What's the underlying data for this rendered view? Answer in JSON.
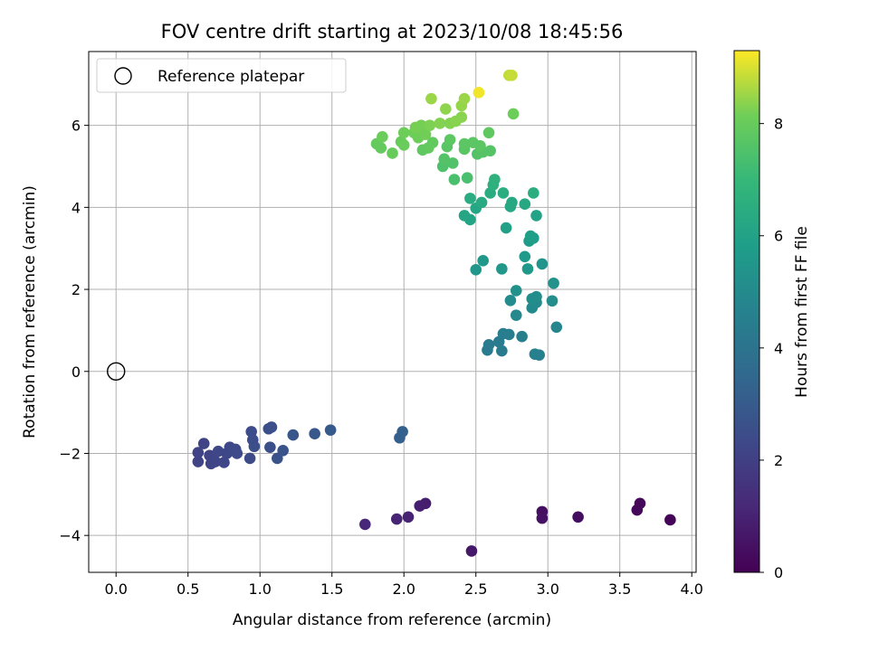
{
  "chart_data": {
    "type": "scatter",
    "title": "FOV centre drift starting at 2023/10/08 18:45:56",
    "xlabel": "Angular distance from reference (arcmin)",
    "ylabel": "Rotation from reference (arcmin)",
    "xlim": [
      -0.19,
      4.03
    ],
    "ylim": [
      -4.9,
      7.8
    ],
    "xticks": [
      0.0,
      0.5,
      1.0,
      1.5,
      2.0,
      2.5,
      3.0,
      3.5,
      4.0
    ],
    "xtick_labels": [
      "0.0",
      "0.5",
      "1.0",
      "1.5",
      "2.0",
      "2.5",
      "3.0",
      "3.5",
      "4.0"
    ],
    "yticks": [
      -4,
      -2,
      0,
      2,
      4,
      6
    ],
    "ytick_labels": [
      "−4",
      "−2",
      "0",
      "2",
      "4",
      "6"
    ],
    "grid": true,
    "legend": {
      "position": "upper-left",
      "entries": [
        {
          "label": "Reference platepar",
          "marker": "open-circle"
        }
      ]
    },
    "reference_point": {
      "x": 0.0,
      "y": 0.0
    },
    "colorbar": {
      "label": "Hours from first FF file",
      "colormap": "viridis",
      "range": [
        0,
        9.3
      ],
      "ticks": [
        0,
        2,
        4,
        6,
        8
      ],
      "tick_labels": [
        "0",
        "2",
        "4",
        "6",
        "8"
      ]
    },
    "points": [
      {
        "x": 3.85,
        "y": -3.62,
        "h": 0.1
      },
      {
        "x": 3.64,
        "y": -3.22,
        "h": 0.2
      },
      {
        "x": 3.62,
        "y": -3.38,
        "h": 0.25
      },
      {
        "x": 3.21,
        "y": -3.55,
        "h": 0.35
      },
      {
        "x": 2.96,
        "y": -3.42,
        "h": 0.45
      },
      {
        "x": 2.96,
        "y": -3.58,
        "h": 0.5
      },
      {
        "x": 2.47,
        "y": -4.38,
        "h": 0.7
      },
      {
        "x": 2.15,
        "y": -3.22,
        "h": 0.85
      },
      {
        "x": 2.11,
        "y": -3.28,
        "h": 0.9
      },
      {
        "x": 2.03,
        "y": -3.55,
        "h": 1.0
      },
      {
        "x": 1.95,
        "y": -3.6,
        "h": 1.05
      },
      {
        "x": 1.73,
        "y": -3.73,
        "h": 1.15
      },
      {
        "x": 0.57,
        "y": -1.98,
        "h": 2.1
      },
      {
        "x": 0.57,
        "y": -2.2,
        "h": 2.1
      },
      {
        "x": 0.61,
        "y": -1.76,
        "h": 2.15
      },
      {
        "x": 0.65,
        "y": -2.05,
        "h": 2.15
      },
      {
        "x": 0.66,
        "y": -2.25,
        "h": 2.2
      },
      {
        "x": 0.69,
        "y": -2.2,
        "h": 2.2
      },
      {
        "x": 0.71,
        "y": -1.95,
        "h": 2.25
      },
      {
        "x": 0.75,
        "y": -2.22,
        "h": 2.25
      },
      {
        "x": 0.77,
        "y": -2.0,
        "h": 2.3
      },
      {
        "x": 0.79,
        "y": -1.85,
        "h": 2.3
      },
      {
        "x": 0.83,
        "y": -1.9,
        "h": 2.35
      },
      {
        "x": 0.84,
        "y": -2.0,
        "h": 2.35
      },
      {
        "x": 0.93,
        "y": -2.12,
        "h": 2.4
      },
      {
        "x": 0.94,
        "y": -1.47,
        "h": 2.45
      },
      {
        "x": 0.95,
        "y": -1.67,
        "h": 2.45
      },
      {
        "x": 0.96,
        "y": -1.83,
        "h": 2.5
      },
      {
        "x": 1.06,
        "y": -1.4,
        "h": 2.55
      },
      {
        "x": 1.08,
        "y": -1.36,
        "h": 2.6
      },
      {
        "x": 1.07,
        "y": -1.85,
        "h": 2.6
      },
      {
        "x": 1.12,
        "y": -2.12,
        "h": 2.65
      },
      {
        "x": 1.16,
        "y": -1.93,
        "h": 2.7
      },
      {
        "x": 1.23,
        "y": -1.55,
        "h": 2.8
      },
      {
        "x": 1.38,
        "y": -1.52,
        "h": 2.9
      },
      {
        "x": 1.49,
        "y": -1.43,
        "h": 2.95
      },
      {
        "x": 1.97,
        "y": -1.62,
        "h": 3.15
      },
      {
        "x": 1.99,
        "y": -1.47,
        "h": 3.2
      },
      {
        "x": 2.58,
        "y": 0.52,
        "h": 4.3
      },
      {
        "x": 2.59,
        "y": 0.65,
        "h": 4.35
      },
      {
        "x": 2.66,
        "y": 0.72,
        "h": 4.4
      },
      {
        "x": 2.68,
        "y": 0.5,
        "h": 4.4
      },
      {
        "x": 2.69,
        "y": 0.92,
        "h": 4.45
      },
      {
        "x": 2.73,
        "y": 0.9,
        "h": 4.45
      },
      {
        "x": 2.82,
        "y": 0.85,
        "h": 4.5
      },
      {
        "x": 2.91,
        "y": 0.42,
        "h": 4.55
      },
      {
        "x": 2.94,
        "y": 0.4,
        "h": 4.55
      },
      {
        "x": 3.06,
        "y": 1.08,
        "h": 4.8
      },
      {
        "x": 2.78,
        "y": 1.37,
        "h": 4.9
      },
      {
        "x": 2.89,
        "y": 1.55,
        "h": 4.95
      },
      {
        "x": 2.92,
        "y": 1.68,
        "h": 5.0
      },
      {
        "x": 2.74,
        "y": 1.73,
        "h": 5.05
      },
      {
        "x": 2.89,
        "y": 1.77,
        "h": 5.1
      },
      {
        "x": 2.92,
        "y": 1.82,
        "h": 5.1
      },
      {
        "x": 3.03,
        "y": 1.72,
        "h": 5.15
      },
      {
        "x": 2.78,
        "y": 1.97,
        "h": 5.25
      },
      {
        "x": 3.04,
        "y": 2.15,
        "h": 5.3
      },
      {
        "x": 2.96,
        "y": 2.62,
        "h": 5.45
      },
      {
        "x": 2.5,
        "y": 2.48,
        "h": 5.5
      },
      {
        "x": 2.55,
        "y": 2.7,
        "h": 5.55
      },
      {
        "x": 2.68,
        "y": 2.5,
        "h": 5.55
      },
      {
        "x": 2.86,
        "y": 2.5,
        "h": 5.6
      },
      {
        "x": 2.84,
        "y": 2.8,
        "h": 5.65
      },
      {
        "x": 2.87,
        "y": 3.18,
        "h": 5.75
      },
      {
        "x": 2.9,
        "y": 3.25,
        "h": 5.8
      },
      {
        "x": 2.88,
        "y": 3.3,
        "h": 5.85
      },
      {
        "x": 2.71,
        "y": 3.5,
        "h": 5.95
      },
      {
        "x": 2.92,
        "y": 3.8,
        "h": 6.05
      },
      {
        "x": 2.46,
        "y": 3.7,
        "h": 6.1
      },
      {
        "x": 2.42,
        "y": 3.8,
        "h": 6.15
      },
      {
        "x": 2.5,
        "y": 3.98,
        "h": 6.2
      },
      {
        "x": 2.74,
        "y": 4.02,
        "h": 6.25
      },
      {
        "x": 2.75,
        "y": 4.12,
        "h": 6.3
      },
      {
        "x": 2.84,
        "y": 4.08,
        "h": 6.3
      },
      {
        "x": 2.54,
        "y": 4.12,
        "h": 6.35
      },
      {
        "x": 2.46,
        "y": 4.22,
        "h": 6.4
      },
      {
        "x": 2.6,
        "y": 4.35,
        "h": 6.45
      },
      {
        "x": 2.69,
        "y": 4.35,
        "h": 6.5
      },
      {
        "x": 2.9,
        "y": 4.35,
        "h": 6.5
      },
      {
        "x": 2.62,
        "y": 4.55,
        "h": 6.6
      },
      {
        "x": 2.63,
        "y": 4.68,
        "h": 6.65
      },
      {
        "x": 2.35,
        "y": 4.68,
        "h": 7.4
      },
      {
        "x": 2.44,
        "y": 4.72,
        "h": 7.4
      },
      {
        "x": 2.27,
        "y": 5.0,
        "h": 7.5
      },
      {
        "x": 2.34,
        "y": 5.08,
        "h": 7.55
      },
      {
        "x": 2.28,
        "y": 5.18,
        "h": 7.6
      },
      {
        "x": 2.51,
        "y": 5.3,
        "h": 7.6
      },
      {
        "x": 2.55,
        "y": 5.35,
        "h": 7.65
      },
      {
        "x": 2.6,
        "y": 5.38,
        "h": 7.65
      },
      {
        "x": 2.42,
        "y": 5.42,
        "h": 7.7
      },
      {
        "x": 2.3,
        "y": 5.48,
        "h": 7.7
      },
      {
        "x": 2.42,
        "y": 5.55,
        "h": 7.75
      },
      {
        "x": 2.48,
        "y": 5.58,
        "h": 7.75
      },
      {
        "x": 2.53,
        "y": 5.5,
        "h": 7.75
      },
      {
        "x": 2.32,
        "y": 5.65,
        "h": 7.8
      },
      {
        "x": 2.59,
        "y": 5.82,
        "h": 7.85
      },
      {
        "x": 2.13,
        "y": 5.4,
        "h": 7.85
      },
      {
        "x": 2.17,
        "y": 5.45,
        "h": 7.9
      },
      {
        "x": 2.2,
        "y": 5.58,
        "h": 7.9
      },
      {
        "x": 1.81,
        "y": 5.55,
        "h": 7.95
      },
      {
        "x": 1.84,
        "y": 5.45,
        "h": 7.95
      },
      {
        "x": 1.92,
        "y": 5.32,
        "h": 8.0
      },
      {
        "x": 1.98,
        "y": 5.6,
        "h": 8.0
      },
      {
        "x": 2.0,
        "y": 5.52,
        "h": 8.05
      },
      {
        "x": 1.85,
        "y": 5.72,
        "h": 8.05
      },
      {
        "x": 2.0,
        "y": 5.82,
        "h": 8.1
      },
      {
        "x": 2.07,
        "y": 5.82,
        "h": 8.1
      },
      {
        "x": 2.1,
        "y": 5.7,
        "h": 8.1
      },
      {
        "x": 2.12,
        "y": 5.85,
        "h": 8.15
      },
      {
        "x": 2.15,
        "y": 5.78,
        "h": 8.15
      },
      {
        "x": 2.08,
        "y": 5.95,
        "h": 8.2
      },
      {
        "x": 2.12,
        "y": 6.0,
        "h": 8.2
      },
      {
        "x": 2.18,
        "y": 6.0,
        "h": 8.25
      },
      {
        "x": 2.25,
        "y": 6.05,
        "h": 8.3
      },
      {
        "x": 2.32,
        "y": 6.05,
        "h": 8.3
      },
      {
        "x": 2.36,
        "y": 6.1,
        "h": 8.35
      },
      {
        "x": 2.4,
        "y": 6.2,
        "h": 8.35
      },
      {
        "x": 2.29,
        "y": 6.4,
        "h": 8.4
      },
      {
        "x": 2.4,
        "y": 6.48,
        "h": 8.45
      },
      {
        "x": 2.42,
        "y": 6.65,
        "h": 8.5
      },
      {
        "x": 2.19,
        "y": 6.65,
        "h": 8.5
      },
      {
        "x": 2.76,
        "y": 6.28,
        "h": 8.1
      },
      {
        "x": 2.73,
        "y": 7.22,
        "h": 8.8
      },
      {
        "x": 2.75,
        "y": 7.22,
        "h": 8.85
      },
      {
        "x": 2.52,
        "y": 6.8,
        "h": 9.2
      }
    ]
  }
}
